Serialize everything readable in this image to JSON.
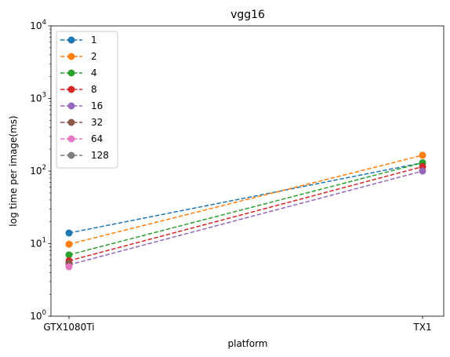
{
  "chart_data": {
    "type": "line",
    "title": "vgg16",
    "xlabel": "platform",
    "ylabel": "log time per image(ms)",
    "yscale": "log",
    "ylim": [
      1,
      10000
    ],
    "categories": [
      "GTX1080Ti",
      "TX1"
    ],
    "grid": false,
    "legend_position": "top-left",
    "series": [
      {
        "name": "1",
        "values": [
          14.0,
          130
        ],
        "color": "#1f77b4"
      },
      {
        "name": "2",
        "values": [
          9.8,
          165
        ],
        "color": "#ff7f0e"
      },
      {
        "name": "4",
        "values": [
          7.0,
          130
        ],
        "color": "#2ca02c"
      },
      {
        "name": "8",
        "values": [
          5.8,
          115
        ],
        "color": "#d62728"
      },
      {
        "name": "16",
        "values": [
          5.1,
          100
        ],
        "color": "#9467bd"
      },
      {
        "name": "32",
        "values": [
          5.4,
          null
        ],
        "color": "#8c564b"
      },
      {
        "name": "64",
        "values": [
          4.8,
          null
        ],
        "color": "#e377c2"
      },
      {
        "name": "128",
        "values": [
          null,
          null
        ],
        "color": "#7f7f7f"
      }
    ]
  }
}
